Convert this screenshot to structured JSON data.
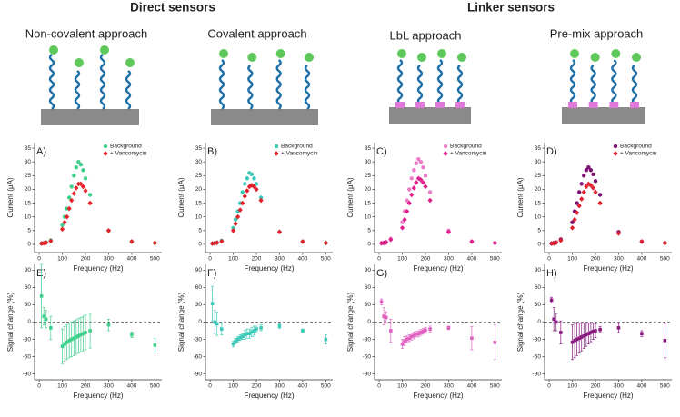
{
  "header": {
    "groups": [
      "Direct sensors",
      "Linker sensors"
    ],
    "approaches": [
      "Non-covalent approach",
      "Covalent approach",
      "LbL approach",
      "Pre-mix approach"
    ]
  },
  "chart_data": [
    {
      "type": "scatter",
      "panel": "A)",
      "x_label": "Frequency (Hz)",
      "y_label": "Current (μA)",
      "xlim": [
        -20,
        530
      ],
      "xticks": [
        0,
        100,
        200,
        300,
        400,
        500
      ],
      "ylim": [
        -3,
        37
      ],
      "yticks": [
        0,
        5,
        10,
        15,
        20,
        25,
        30,
        35
      ],
      "legend": "upper right",
      "x": [
        10,
        20,
        30,
        50,
        100,
        110,
        120,
        130,
        140,
        150,
        160,
        170,
        180,
        190,
        200,
        220,
        300,
        400,
        500
      ],
      "series": [
        {
          "name": "Background",
          "color": "#3fcf8c",
          "marker": "circle",
          "values": [
            0.3,
            0.5,
            0.7,
            1.5,
            7,
            10,
            13,
            17,
            21,
            25,
            28,
            30,
            29,
            27,
            24,
            18,
            5,
            1,
            0.5
          ]
        },
        {
          "name": "+ Vancomycin",
          "color": "#e8222a",
          "marker": "diamond",
          "values": [
            0.3,
            0.4,
            0.6,
            1.2,
            5.5,
            8,
            10,
            13,
            16,
            18.5,
            20.5,
            22,
            22,
            21,
            19.5,
            15,
            5,
            1,
            0.5
          ]
        }
      ]
    },
    {
      "type": "scatter",
      "panel": "B)",
      "x_label": "Frequency (Hz)",
      "y_label": "Current (μA)",
      "xlim": [
        -20,
        530
      ],
      "xticks": [
        0,
        100,
        200,
        300,
        400,
        500
      ],
      "ylim": [
        -3,
        37
      ],
      "yticks": [
        0,
        5,
        10,
        15,
        20,
        25,
        30,
        35
      ],
      "legend": "upper right",
      "x": [
        10,
        20,
        30,
        50,
        100,
        110,
        120,
        130,
        140,
        150,
        160,
        170,
        180,
        190,
        200,
        220,
        300,
        400,
        500
      ],
      "series": [
        {
          "name": "Background",
          "color": "#3cc9b8",
          "marker": "circle",
          "values": [
            0.3,
            0.4,
            0.6,
            1.3,
            6,
            9,
            12,
            15,
            19,
            22,
            24,
            26,
            25.5,
            24,
            22,
            17,
            4.5,
            1,
            0.5
          ]
        },
        {
          "name": "+ Vancomycin",
          "color": "#e0202a",
          "marker": "diamond",
          "values": [
            0.3,
            0.4,
            0.6,
            1.1,
            5,
            7.5,
            10,
            12.5,
            15,
            17.5,
            19.5,
            21,
            21.5,
            21,
            20,
            16,
            4.5,
            1,
            0.5
          ]
        }
      ]
    },
    {
      "type": "scatter",
      "panel": "C)",
      "x_label": "Frequency (Hz)",
      "y_label": "Current (μA)",
      "xlim": [
        -20,
        530
      ],
      "xticks": [
        0,
        100,
        200,
        300,
        400,
        500
      ],
      "ylim": [
        -3,
        37
      ],
      "yticks": [
        0,
        5,
        10,
        15,
        20,
        25,
        30,
        35
      ],
      "legend": "upper right",
      "x": [
        10,
        20,
        30,
        50,
        100,
        110,
        120,
        130,
        140,
        150,
        160,
        170,
        180,
        190,
        200,
        220,
        300,
        400,
        500
      ],
      "series": [
        {
          "name": "Background",
          "color": "#ea7cc8",
          "marker": "circle",
          "values": [
            0.4,
            0.6,
            0.8,
            2,
            8,
            12,
            16,
            20,
            24,
            27,
            29.5,
            31,
            30,
            28,
            25,
            19,
            5,
            1,
            0.5
          ]
        },
        {
          "name": "+ Vancomycin",
          "color": "#e0208a",
          "marker": "diamond",
          "values": [
            0.4,
            0.5,
            0.7,
            1.7,
            6,
            9,
            12,
            15,
            18,
            20.5,
            22.5,
            24,
            23.5,
            22.5,
            21,
            16,
            4.5,
            1,
            0.5
          ]
        }
      ]
    },
    {
      "type": "scatter",
      "panel": "D)",
      "x_label": "Frequency (Hz)",
      "y_label": "Current (μA)",
      "xlim": [
        -20,
        530
      ],
      "xticks": [
        0,
        100,
        200,
        300,
        400,
        500
      ],
      "ylim": [
        -3,
        37
      ],
      "yticks": [
        0,
        5,
        10,
        15,
        20,
        25,
        30,
        35
      ],
      "legend": "upper right",
      "x": [
        10,
        20,
        30,
        50,
        100,
        110,
        120,
        130,
        140,
        150,
        160,
        170,
        180,
        190,
        200,
        220,
        300,
        400,
        500
      ],
      "series": [
        {
          "name": "Background",
          "color": "#7a1070",
          "marker": "circle",
          "values": [
            0.3,
            0.5,
            0.7,
            1.8,
            8,
            12,
            15,
            19,
            22,
            25,
            27,
            28,
            27,
            25.5,
            23,
            18,
            4.5,
            1,
            0.5
          ]
        },
        {
          "name": "+ Vancomycin",
          "color": "#e02030",
          "marker": "diamond",
          "values": [
            0.3,
            0.4,
            0.6,
            1.4,
            6,
            9,
            11.5,
            14,
            16.5,
            19,
            21,
            22,
            21.5,
            20.5,
            19,
            15,
            4,
            1,
            0.5
          ]
        }
      ]
    },
    {
      "type": "scatter",
      "panel": "E)",
      "x_label": "Frequency (Hz)",
      "y_label": "Signal change (%)",
      "xlim": [
        -20,
        530
      ],
      "xticks": [
        0,
        100,
        200,
        300,
        400,
        500
      ],
      "ylim": [
        -100,
        100
      ],
      "yticks": [
        -90,
        -60,
        -30,
        0,
        30,
        60,
        90
      ],
      "reference_line": 0,
      "x": [
        10,
        20,
        30,
        50,
        100,
        110,
        120,
        130,
        140,
        150,
        160,
        170,
        180,
        190,
        200,
        220,
        300,
        400,
        500
      ],
      "series": [
        {
          "color": "#3fcf8c",
          "marker": "square",
          "values": [
            45,
            10,
            5,
            -10,
            -42,
            -38,
            -35,
            -32,
            -30,
            -28,
            -26,
            -24,
            -22,
            -20,
            -18,
            -15,
            -5,
            -22,
            -40
          ],
          "errors": [
            55,
            15,
            15,
            20,
            30,
            30,
            30,
            30,
            30,
            30,
            30,
            30,
            30,
            30,
            30,
            30,
            10,
            5,
            12
          ]
        }
      ]
    },
    {
      "type": "scatter",
      "panel": "F)",
      "x_label": "Frequency (Hz)",
      "y_label": "Signal change (%)",
      "xlim": [
        -20,
        530
      ],
      "xticks": [
        0,
        100,
        200,
        300,
        400,
        500
      ],
      "ylim": [
        -100,
        100
      ],
      "yticks": [
        -90,
        -60,
        -30,
        0,
        30,
        60,
        90
      ],
      "reference_line": 0,
      "x": [
        10,
        20,
        30,
        50,
        100,
        110,
        120,
        130,
        140,
        150,
        160,
        170,
        180,
        190,
        200,
        220,
        300,
        400,
        500
      ],
      "series": [
        {
          "color": "#3cc9b8",
          "marker": "square",
          "values": [
            32,
            0,
            -3,
            -12,
            -38,
            -33,
            -30,
            -27,
            -25,
            -22,
            -20,
            -20,
            -17,
            -15,
            -12,
            -10,
            -7,
            -15,
            -30
          ],
          "errors": [
            30,
            20,
            20,
            10,
            5,
            5,
            5,
            5,
            5,
            8,
            8,
            8,
            8,
            8,
            5,
            5,
            4,
            3,
            8
          ]
        }
      ]
    },
    {
      "type": "scatter",
      "panel": "G)",
      "x_label": "Frequency (Hz)",
      "y_label": "Signal change (%)",
      "xlim": [
        -20,
        530
      ],
      "xticks": [
        0,
        100,
        200,
        300,
        400,
        500
      ],
      "ylim": [
        -100,
        100
      ],
      "yticks": [
        -90,
        -60,
        -30,
        0,
        30,
        60,
        90
      ],
      "reference_line": 0,
      "x": [
        10,
        20,
        30,
        50,
        100,
        110,
        120,
        130,
        140,
        150,
        160,
        170,
        180,
        190,
        200,
        220,
        300,
        400,
        500
      ],
      "series": [
        {
          "color": "#e060c0",
          "marker": "square",
          "values": [
            35,
            10,
            8,
            -15,
            -38,
            -33,
            -30,
            -28,
            -25,
            -23,
            -21,
            -20,
            -18,
            -16,
            -14,
            -12,
            -10,
            -28,
            -35
          ],
          "errors": [
            5,
            15,
            10,
            20,
            8,
            8,
            6,
            6,
            6,
            6,
            5,
            5,
            5,
            5,
            5,
            5,
            3,
            20,
            30
          ]
        }
      ]
    },
    {
      "type": "scatter",
      "panel": "H)",
      "x_label": "Frequency (Hz)",
      "y_label": "Signal change (%)",
      "xlim": [
        -20,
        530
      ],
      "xticks": [
        0,
        100,
        200,
        300,
        400,
        500
      ],
      "ylim": [
        -100,
        100
      ],
      "yticks": [
        -90,
        -60,
        -30,
        0,
        30,
        60,
        90
      ],
      "reference_line": 0,
      "x": [
        10,
        20,
        30,
        50,
        100,
        110,
        120,
        130,
        140,
        150,
        160,
        170,
        180,
        190,
        200,
        220,
        300,
        400,
        500
      ],
      "series": [
        {
          "color": "#8a1a80",
          "marker": "square",
          "values": [
            38,
            5,
            0,
            -18,
            -35,
            -32,
            -30,
            -28,
            -26,
            -24,
            -22,
            -20,
            -18,
            -16,
            -15,
            -13,
            -10,
            -20,
            -32
          ],
          "errors": [
            5,
            20,
            15,
            20,
            30,
            30,
            28,
            26,
            24,
            22,
            20,
            18,
            16,
            14,
            12,
            5,
            8,
            5,
            30
          ]
        }
      ]
    }
  ]
}
